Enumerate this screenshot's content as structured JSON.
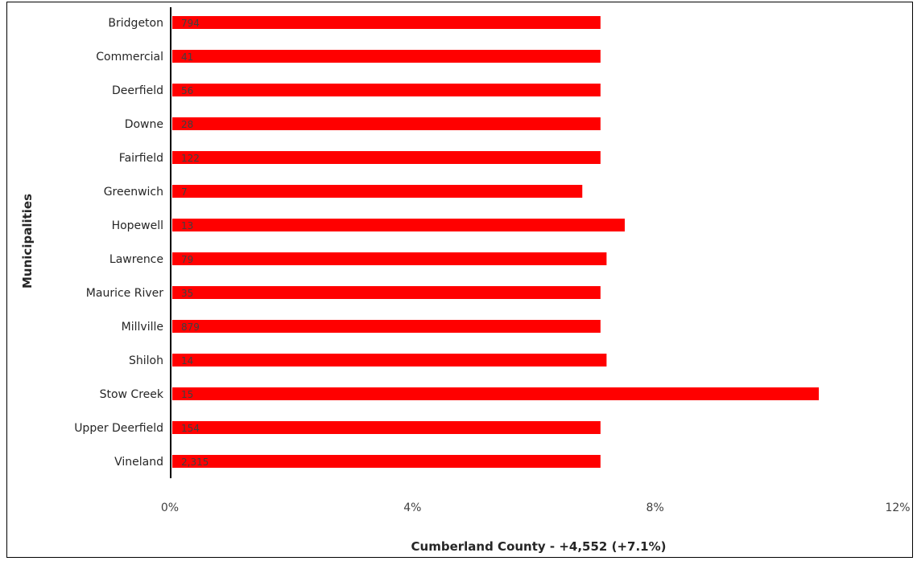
{
  "chart_data": {
    "type": "bar",
    "orientation": "horizontal",
    "ylabel": "Municipalities",
    "xlabel": "Cumberland County - +4,552 (+7.1%)",
    "xlim": [
      0,
      12
    ],
    "x_unit": "%",
    "x_ticks": [
      "0%",
      "4%",
      "8%",
      "12%"
    ],
    "categories": [
      "Bridgeton",
      "Commercial",
      "Deerfield",
      "Downe",
      "Fairfield",
      "Greenwich",
      "Hopewell",
      "Lawrence",
      "Maurice River",
      "Millville",
      "Shiloh",
      "Stow Creek",
      "Upper Deerfield",
      "Vineland"
    ],
    "values": [
      7.1,
      7.1,
      7.1,
      7.1,
      7.1,
      6.8,
      7.5,
      7.2,
      7.1,
      7.1,
      7.2,
      10.7,
      7.1,
      7.1
    ],
    "data_labels": [
      "794",
      "41",
      "56",
      "28",
      "122",
      "7",
      "13",
      "79",
      "35",
      "879",
      "14",
      "15",
      "154",
      "2,315"
    ],
    "bar_color": "#ff0000",
    "grid": false,
    "legend": "none"
  }
}
